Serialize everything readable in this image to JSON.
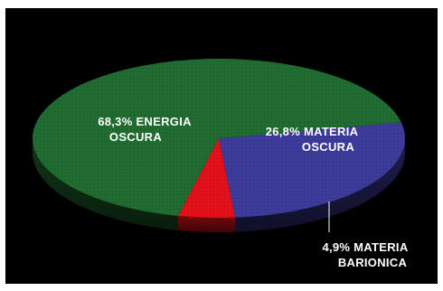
{
  "chart_data": {
    "type": "pie",
    "three_d": true,
    "title": "",
    "slices": [
      {
        "value": 68.3,
        "label_lines": [
          "68,3% ENERGIA",
          "OSCURA"
        ],
        "color": "#1f6a2e"
      },
      {
        "value": 26.8,
        "label_lines": [
          "26,8% MATERIA",
          "OSCURA"
        ],
        "color": "#3b3a98"
      },
      {
        "value": 4.9,
        "label_lines": [
          "4,9% MATERIA",
          "BARIONICA"
        ],
        "color": "#e0101a"
      }
    ],
    "legend": "none",
    "background": "#000000"
  }
}
